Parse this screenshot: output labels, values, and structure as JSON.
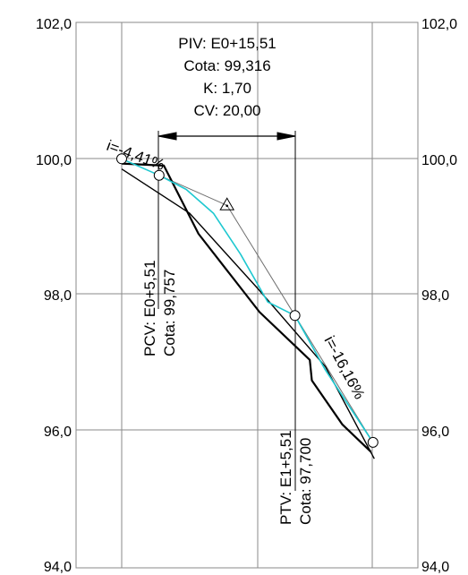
{
  "chart_data": {
    "type": "line",
    "title": "",
    "xlabel": "",
    "ylabel": "",
    "ylim": [
      94.0,
      102.0
    ],
    "y_ticks": [
      "102,0",
      "100,0",
      "98,0",
      "96,0",
      "94,0"
    ],
    "grid": true,
    "piv_block": {
      "line1": "PIV: E0+15,51",
      "line2": "Cota: 99,316",
      "line3": "K: 1,70",
      "line4": "CV: 20,00"
    },
    "pcv": {
      "station": "PCV: E0+5,51",
      "elev": "Cota: 99,757"
    },
    "ptv": {
      "station": "PTV: E1+5,51",
      "elev": "Cota: 97,700"
    },
    "grade_in": "i=-4,41%",
    "grade_out": "i=-16,16%",
    "series": [
      {
        "values": [
          [
            0,
            100.0
          ],
          [
            5.51,
            99.757
          ],
          [
            15.51,
            99.316
          ],
          [
            25.51,
            97.7
          ],
          [
            37.0,
            95.84
          ]
        ]
      },
      {
        "values": [
          [
            0,
            99.93
          ],
          [
            6.2,
            99.9
          ],
          [
            11.3,
            98.9
          ],
          [
            20.3,
            97.75
          ],
          [
            27.7,
            97.05
          ],
          [
            28.0,
            96.75
          ],
          [
            32.5,
            96.1
          ],
          [
            36.7,
            95.7
          ]
        ]
      },
      {
        "values": [
          [
            0,
            99.85
          ],
          [
            10,
            99.2
          ],
          [
            20,
            98.1
          ],
          [
            30,
            96.95
          ],
          [
            37.2,
            95.6
          ]
        ]
      },
      {
        "values": [
          [
            0,
            100.0
          ],
          [
            5.51,
            99.757
          ],
          [
            9.5,
            99.55
          ],
          [
            13.5,
            99.2
          ],
          [
            17.5,
            98.6
          ],
          [
            21.5,
            97.9
          ],
          [
            25.51,
            97.7
          ],
          [
            30,
            96.9
          ],
          [
            37.0,
            95.84
          ]
        ]
      }
    ]
  },
  "colors": {
    "grid": "#8a8a8a",
    "terrain": "#000000",
    "tangent": "#707070",
    "curve": "#1ec8d0"
  }
}
